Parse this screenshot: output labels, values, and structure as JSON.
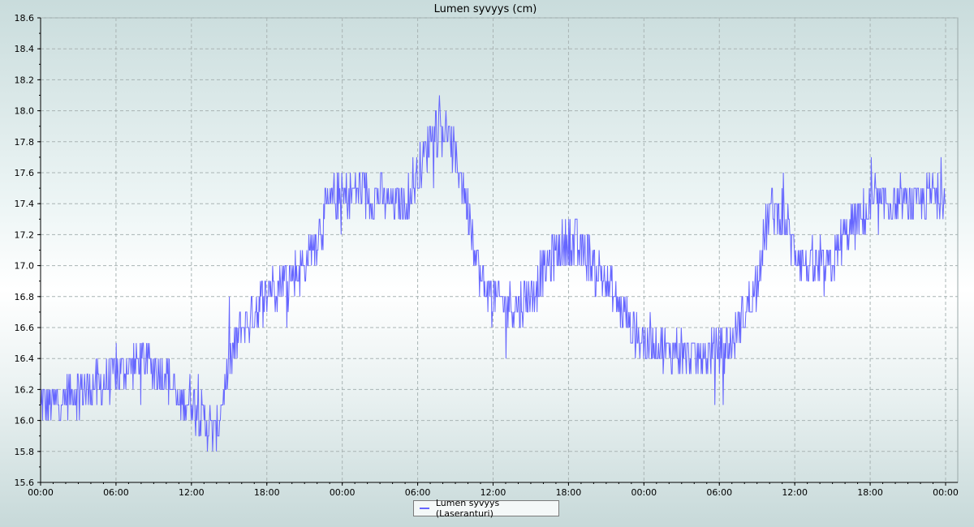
{
  "chart_data": {
    "type": "line",
    "title": "Lumen syvyys (cm)",
    "xlabel": "",
    "ylabel": "",
    "ylim": [
      15.6,
      18.6
    ],
    "yticks": [
      "15.6",
      "15.8",
      "16.0",
      "16.2",
      "16.4",
      "16.6",
      "16.8",
      "17.0",
      "17.2",
      "17.4",
      "17.6",
      "17.8",
      "18.0",
      "18.2",
      "18.4",
      "18.6"
    ],
    "xticks": [
      "00:00",
      "06:00",
      "12:00",
      "18:00",
      "00:00",
      "06:00",
      "12:00",
      "18:00",
      "00:00",
      "06:00",
      "12:00",
      "18:00",
      "00:00"
    ],
    "x_hours_range": [
      0,
      72
    ],
    "grid": true,
    "legend_position": "bottom-center",
    "series": [
      {
        "name": "Lumen syvyys (Laseranturi)",
        "color": "#6666ff",
        "x_hours": [
          0,
          1,
          2,
          3,
          4,
          5,
          6,
          7,
          8,
          9,
          10,
          11,
          12,
          13,
          14,
          15,
          16,
          17,
          18,
          19,
          20,
          21,
          22,
          23,
          24,
          25,
          26,
          27,
          28,
          29,
          30,
          31,
          32,
          33,
          34,
          35,
          36,
          37,
          38,
          39,
          40,
          41,
          42,
          43,
          44,
          45,
          46,
          47,
          48,
          49,
          50,
          51,
          52,
          53,
          54,
          55,
          56,
          57,
          58,
          59,
          60,
          61,
          62,
          63,
          64,
          65,
          66,
          67,
          68,
          69,
          70,
          71,
          72
        ],
        "values": [
          16.1,
          16.1,
          16.15,
          16.2,
          16.2,
          16.25,
          16.3,
          16.35,
          16.4,
          16.35,
          16.3,
          16.1,
          16.15,
          16.0,
          15.9,
          16.35,
          16.6,
          16.7,
          16.85,
          16.9,
          16.95,
          17.0,
          17.2,
          17.4,
          17.45,
          17.5,
          17.45,
          17.45,
          17.4,
          17.4,
          17.6,
          17.85,
          17.9,
          17.7,
          17.4,
          16.9,
          16.8,
          16.75,
          16.75,
          16.8,
          16.95,
          17.1,
          17.15,
          17.1,
          17.0,
          16.9,
          16.75,
          16.6,
          16.5,
          16.5,
          16.45,
          16.45,
          16.4,
          16.4,
          16.45,
          16.5,
          16.7,
          16.9,
          17.35,
          17.35,
          17.1,
          17.0,
          16.95,
          17.0,
          17.2,
          17.3,
          17.35,
          17.4,
          17.4,
          17.4,
          17.4,
          17.45,
          17.5
        ],
        "noise_amplitude": 0.15
      }
    ]
  }
}
